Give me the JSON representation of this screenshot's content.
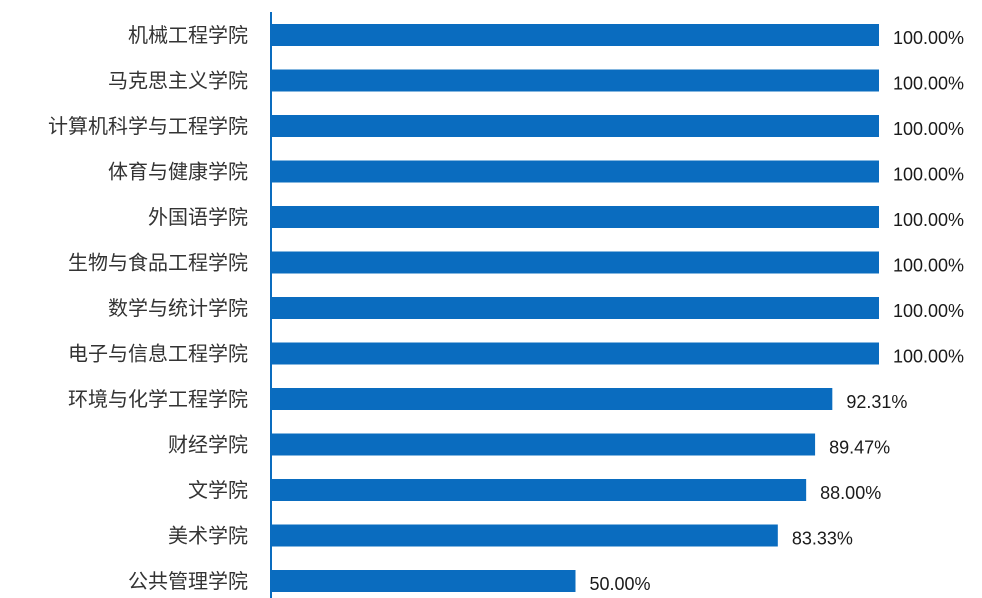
{
  "chart_data": {
    "type": "bar",
    "orientation": "horizontal",
    "categories": [
      "机械工程学院",
      "马克思主义学院",
      "计算机科学与工程学院",
      "体育与健康学院",
      "外国语学院",
      "生物与食品工程学院",
      "数学与统计学院",
      "电子与信息工程学院",
      "环境与化学工程学院",
      "财经学院",
      "文学院",
      "美术学院",
      "公共管理学院"
    ],
    "values": [
      100.0,
      100.0,
      100.0,
      100.0,
      100.0,
      100.0,
      100.0,
      100.0,
      92.31,
      89.47,
      88.0,
      83.33,
      50.0
    ],
    "value_labels": [
      "100.00%",
      "100.00%",
      "100.00%",
      "100.00%",
      "100.00%",
      "100.00%",
      "100.00%",
      "100.00%",
      "92.31%",
      "89.47%",
      "88.00%",
      "83.33%",
      "50.00%"
    ],
    "xlim": [
      0,
      100
    ],
    "grid": false,
    "legend": "none",
    "bar_color": "#0a6cbf",
    "axis_color": "#0a6cbf"
  }
}
